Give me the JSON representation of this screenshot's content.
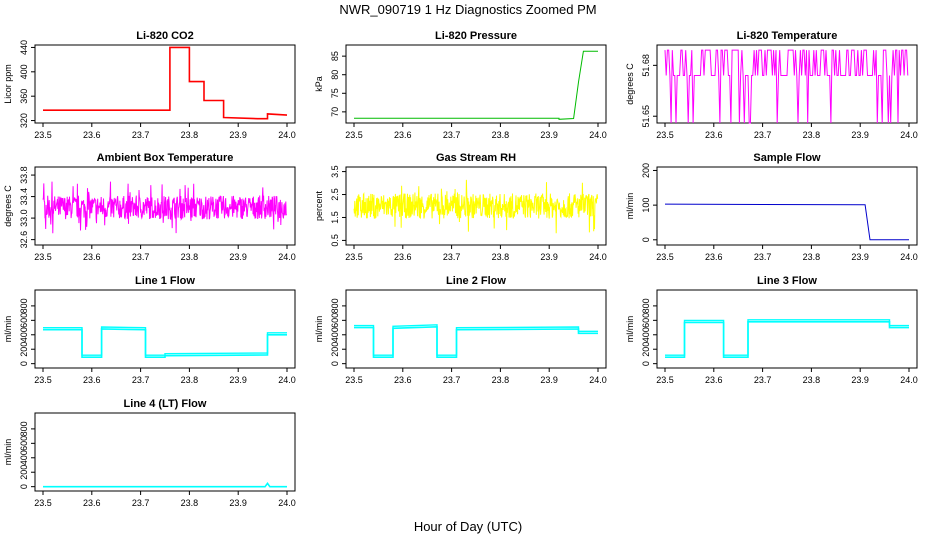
{
  "figure": {
    "title": "NWR_090719  1 Hz Diagnostics Zoomed PM",
    "xlabel": "Hour of Day (UTC)"
  },
  "chart_data": [
    {
      "type": "line",
      "title": "Li-820 CO2",
      "ylabel": "Licor ppm",
      "color": "#ff0000",
      "xlim": [
        23.5,
        24.0
      ],
      "ylim": [
        316,
        444
      ],
      "xticks": [
        "23.5",
        "23.6",
        "23.7",
        "23.8",
        "23.9",
        "24.0"
      ],
      "yticks": [
        "320",
        "360",
        "400",
        "440"
      ],
      "series": [
        {
          "x": [
            23.5,
            23.76,
            23.76,
            23.8,
            23.8,
            23.83,
            23.83,
            23.87,
            23.87,
            23.94,
            23.96,
            23.96,
            24.0
          ],
          "y": [
            337,
            337,
            440,
            440,
            384,
            384,
            353,
            353,
            325,
            323,
            323,
            331,
            329
          ]
        }
      ]
    },
    {
      "type": "line",
      "title": "Li-820 Pressure",
      "ylabel": "kPa",
      "color": "#00bb00",
      "xlim": [
        23.5,
        24.0
      ],
      "ylim": [
        67,
        88
      ],
      "xticks": [
        "23.5",
        "23.6",
        "23.7",
        "23.8",
        "23.9",
        "24.0"
      ],
      "yticks": [
        "70",
        "75",
        "80",
        "85"
      ],
      "series": [
        {
          "x": [
            23.5,
            23.92,
            23.92,
            23.95,
            23.96,
            23.97,
            24.0
          ],
          "y": [
            68.3,
            68.3,
            68.0,
            68.2,
            78,
            86.3,
            86.3
          ]
        }
      ]
    },
    {
      "type": "line",
      "title": "Li-820 Temperature",
      "ylabel": "degrees C",
      "color": "#ff00ff",
      "xlim": [
        23.5,
        24.0
      ],
      "ylim": [
        51.646,
        51.692
      ],
      "xticks": [
        "23.5",
        "23.6",
        "23.7",
        "23.8",
        "23.9",
        "24.0"
      ],
      "yticks": [
        "51.65",
        "51.68"
      ],
      "series": [
        {
          "x": [
            23.5,
            24.0
          ],
          "y": [
            51.674,
            51.674
          ]
        }
      ]
    },
    {
      "type": "line",
      "title": "Ambient Box Temperature",
      "ylabel": "degrees C",
      "color": "#ff00ff",
      "xlim": [
        23.5,
        24.0
      ],
      "ylim": [
        32.5,
        33.95
      ],
      "xticks": [
        "23.5",
        "23.6",
        "23.7",
        "23.8",
        "23.9",
        "24.0"
      ],
      "yticks": [
        "32.6",
        "33.0",
        "33.4",
        "33.8"
      ],
      "series": [
        {
          "x": [
            23.5,
            24.0
          ],
          "y": [
            33.2,
            33.2
          ]
        }
      ]
    },
    {
      "type": "line",
      "title": "Gas Stream RH",
      "ylabel": "percent",
      "color": "#ffff00",
      "xlim": [
        23.5,
        24.0
      ],
      "ylim": [
        0.3,
        3.7
      ],
      "xticks": [
        "23.5",
        "23.6",
        "23.7",
        "23.8",
        "23.9",
        "24.0"
      ],
      "yticks": [
        "0.5",
        "1.5",
        "2.5",
        "3.5"
      ],
      "series": [
        {
          "x": [
            23.5,
            24.0
          ],
          "y": [
            2.0,
            2.0
          ]
        }
      ]
    },
    {
      "type": "line",
      "title": "Sample Flow",
      "ylabel": "ml/min",
      "color": "#0000cc",
      "xlim": [
        23.5,
        24.0
      ],
      "ylim": [
        -15,
        210
      ],
      "xticks": [
        "23.5",
        "23.6",
        "23.7",
        "23.8",
        "23.9",
        "24.0"
      ],
      "yticks": [
        "0",
        "100",
        "200"
      ],
      "series": [
        {
          "x": [
            23.5,
            23.91,
            23.92,
            24.0
          ],
          "y": [
            103,
            101,
            0,
            0
          ]
        }
      ]
    },
    {
      "type": "line",
      "title": "Line 1 Flow",
      "ylabel": "ml/min",
      "color": "#00ffff",
      "xlim": [
        23.5,
        24.0
      ],
      "ylim": [
        -60,
        1020
      ],
      "xticks": [
        "23.5",
        "23.6",
        "23.7",
        "23.8",
        "23.9",
        "24.0"
      ],
      "yticks": [
        "0",
        "200",
        "400",
        "600",
        "800"
      ],
      "series": [
        {
          "x": [
            23.5,
            23.58,
            23.58,
            23.62,
            23.62,
            23.71,
            23.71,
            23.75,
            23.75,
            23.96,
            23.96,
            24.0
          ],
          "y": [
            470,
            470,
            90,
            90,
            480,
            470,
            90,
            90,
            110,
            120,
            400,
            400
          ]
        }
      ]
    },
    {
      "type": "line",
      "title": "Line 2 Flow",
      "ylabel": "ml/min",
      "color": "#00ffff",
      "xlim": [
        23.5,
        24.0
      ],
      "ylim": [
        -60,
        1020
      ],
      "xticks": [
        "23.5",
        "23.6",
        "23.7",
        "23.8",
        "23.9",
        "24.0"
      ],
      "yticks": [
        "0",
        "200",
        "400",
        "600",
        "800"
      ],
      "series": [
        {
          "x": [
            23.5,
            23.54,
            23.54,
            23.58,
            23.58,
            23.67,
            23.67,
            23.71,
            23.71,
            23.96,
            23.96,
            24.0
          ],
          "y": [
            500,
            500,
            90,
            90,
            490,
            510,
            90,
            90,
            470,
            480,
            420,
            420
          ]
        }
      ]
    },
    {
      "type": "line",
      "title": "Line 3 Flow",
      "ylabel": "ml/min",
      "color": "#00ffff",
      "xlim": [
        23.5,
        24.0
      ],
      "ylim": [
        -60,
        1020
      ],
      "xticks": [
        "23.5",
        "23.6",
        "23.7",
        "23.8",
        "23.9",
        "24.0"
      ],
      "yticks": [
        "0",
        "200",
        "400",
        "600",
        "800"
      ],
      "series": [
        {
          "x": [
            23.5,
            23.54,
            23.54,
            23.62,
            23.62,
            23.67,
            23.67,
            23.96,
            23.96,
            24.0
          ],
          "y": [
            90,
            90,
            570,
            570,
            90,
            90,
            580,
            580,
            500,
            500
          ]
        }
      ]
    },
    {
      "type": "line",
      "title": "Line 4 (LT) Flow",
      "ylabel": "ml/min",
      "color": "#00ffff",
      "xlim": [
        23.5,
        24.0
      ],
      "ylim": [
        -60,
        1020
      ],
      "xticks": [
        "23.5",
        "23.6",
        "23.7",
        "23.8",
        "23.9",
        "24.0"
      ],
      "yticks": [
        "0",
        "200",
        "400",
        "600",
        "800"
      ],
      "series": [
        {
          "x": [
            23.5,
            23.955,
            23.96,
            23.965,
            24.0
          ],
          "y": [
            0,
            0,
            45,
            0,
            0
          ]
        }
      ]
    }
  ]
}
